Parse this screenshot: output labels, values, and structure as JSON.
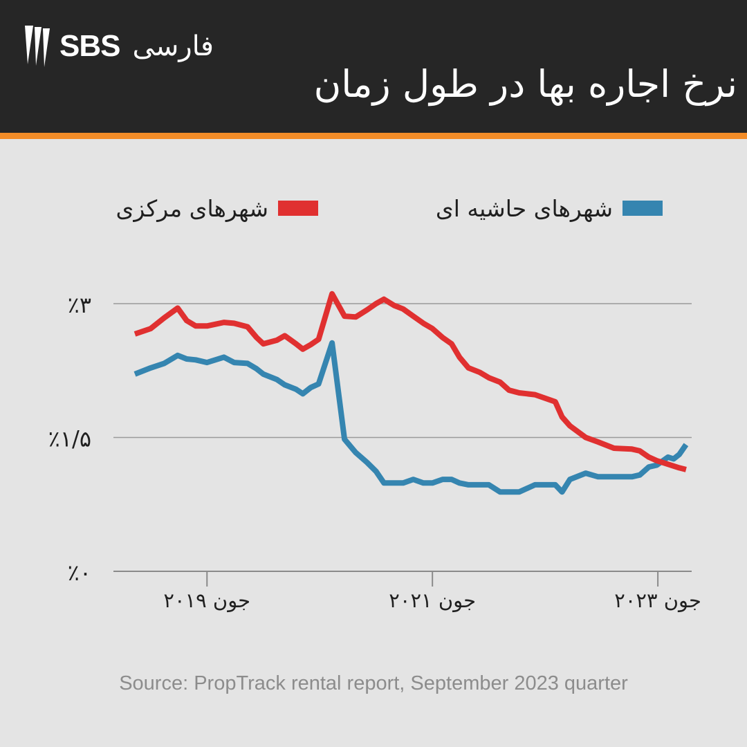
{
  "header": {
    "brand": "SBS",
    "brand_sub": "فارسی",
    "title": "نرخ اجاره بها در طول زمان"
  },
  "legend": {
    "regional_label": "شهرهای حاشیه ای",
    "capital_label": "شهرهای مرکزی"
  },
  "colors": {
    "header_bg": "#262626",
    "accent": "#f28c28",
    "capital": "#e03030",
    "regional": "#3585b0",
    "background": "#e4e4e4"
  },
  "source": "Source: PropTrack rental report, September 2023 quarter",
  "chart_data": {
    "type": "line",
    "title": "نرخ اجاره بها در طول زمان",
    "y_unit": "%",
    "ylim": [
      0,
      3.4
    ],
    "y_ticks": [
      0,
      1.5,
      3
    ],
    "y_tick_labels": [
      "٪۰",
      "٪۱/۵",
      "٪۳"
    ],
    "x_ticks": [
      2019.5,
      2021.5,
      2023.5
    ],
    "x_tick_labels": [
      "جون ۲۰۱۹",
      "جون ۲۰۲۱",
      "جون ۲۰۲۳"
    ],
    "xlim": [
      2018.67,
      2023.8
    ],
    "grid": "horizontal",
    "legend_position": "top",
    "series": [
      {
        "name": "شهرهای مرکزی",
        "color": "#e03030",
        "x": [
          2018.86,
          2019.0,
          2019.12,
          2019.24,
          2019.32,
          2019.4,
          2019.5,
          2019.65,
          2019.74,
          2019.86,
          2019.94,
          2020.0,
          2020.12,
          2020.19,
          2020.29,
          2020.35,
          2020.42,
          2020.49,
          2020.61,
          2020.72,
          2020.82,
          2020.92,
          2021.0,
          2021.07,
          2021.16,
          2021.24,
          2021.33,
          2021.42,
          2021.5,
          2021.59,
          2021.67,
          2021.74,
          2021.82,
          2021.92,
          2022.0,
          2022.1,
          2022.18,
          2022.27,
          2022.41,
          2022.59,
          2022.65,
          2022.72,
          2022.86,
          2022.97,
          2023.11,
          2023.27,
          2023.34,
          2023.42,
          2023.49,
          2023.59,
          2023.64,
          2023.69,
          2023.75
        ],
        "values": [
          2.66,
          2.72,
          2.84,
          2.95,
          2.81,
          2.75,
          2.75,
          2.79,
          2.78,
          2.74,
          2.62,
          2.55,
          2.59,
          2.64,
          2.55,
          2.49,
          2.54,
          2.6,
          3.11,
          2.86,
          2.85,
          2.93,
          3.0,
          3.05,
          2.98,
          2.94,
          2.86,
          2.78,
          2.72,
          2.62,
          2.55,
          2.4,
          2.28,
          2.23,
          2.17,
          2.12,
          2.03,
          2.0,
          1.98,
          1.9,
          1.73,
          1.63,
          1.5,
          1.45,
          1.38,
          1.37,
          1.35,
          1.28,
          1.24,
          1.2,
          1.18,
          1.16,
          1.14
        ]
      },
      {
        "name": "شهرهای حاشیه ای",
        "color": "#3585b0",
        "x": [
          2018.86,
          2019.0,
          2019.12,
          2019.24,
          2019.32,
          2019.4,
          2019.5,
          2019.65,
          2019.74,
          2019.86,
          2019.94,
          2020.0,
          2020.12,
          2020.19,
          2020.29,
          2020.35,
          2020.42,
          2020.49,
          2020.61,
          2020.72,
          2020.82,
          2020.92,
          2021.0,
          2021.07,
          2021.16,
          2021.24,
          2021.33,
          2021.42,
          2021.5,
          2021.59,
          2021.67,
          2021.74,
          2021.82,
          2021.92,
          2022.0,
          2022.1,
          2022.18,
          2022.27,
          2022.41,
          2022.59,
          2022.65,
          2022.72,
          2022.86,
          2022.97,
          2023.11,
          2023.27,
          2023.34,
          2023.42,
          2023.49,
          2023.59,
          2023.64,
          2023.69,
          2023.75
        ],
        "values": [
          2.21,
          2.28,
          2.33,
          2.42,
          2.38,
          2.37,
          2.34,
          2.4,
          2.34,
          2.33,
          2.27,
          2.21,
          2.15,
          2.09,
          2.04,
          1.99,
          2.06,
          2.1,
          2.56,
          1.48,
          1.33,
          1.22,
          1.12,
          0.99,
          0.99,
          0.99,
          1.03,
          0.99,
          0.99,
          1.03,
          1.03,
          0.99,
          0.97,
          0.97,
          0.97,
          0.89,
          0.89,
          0.89,
          0.97,
          0.97,
          0.89,
          1.03,
          1.1,
          1.06,
          1.06,
          1.06,
          1.08,
          1.17,
          1.19,
          1.28,
          1.26,
          1.31,
          1.42
        ]
      }
    ]
  }
}
